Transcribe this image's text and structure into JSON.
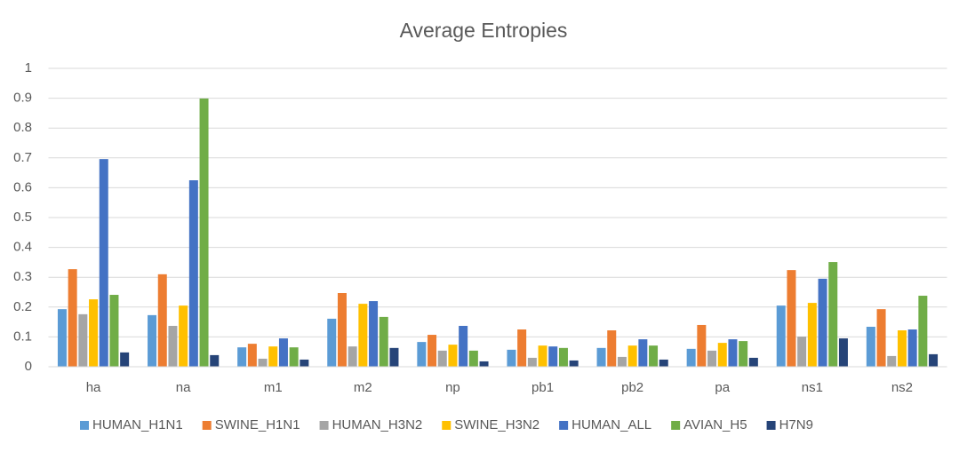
{
  "chart_data": {
    "type": "bar",
    "title": "Average Entropies",
    "categories": [
      "ha",
      "na",
      "m1",
      "m2",
      "np",
      "pb1",
      "pb2",
      "pa",
      "ns1",
      "ns2"
    ],
    "series": [
      {
        "name": "HUMAN_H1N1",
        "color": "#5b9bd5",
        "values": [
          0.193,
          0.173,
          0.065,
          0.161,
          0.083,
          0.057,
          0.063,
          0.06,
          0.205,
          0.134
        ]
      },
      {
        "name": "SWINE_H1N1",
        "color": "#ed7d31",
        "values": [
          0.327,
          0.31,
          0.077,
          0.247,
          0.107,
          0.125,
          0.122,
          0.14,
          0.324,
          0.193
        ]
      },
      {
        "name": "HUMAN_H3N2",
        "color": "#a5a5a5",
        "values": [
          0.176,
          0.137,
          0.027,
          0.068,
          0.054,
          0.03,
          0.033,
          0.054,
          0.101,
          0.036
        ]
      },
      {
        "name": "SWINE_H3N2",
        "color": "#ffc000",
        "values": [
          0.226,
          0.205,
          0.068,
          0.211,
          0.074,
          0.071,
          0.071,
          0.08,
          0.214,
          0.122
        ]
      },
      {
        "name": "HUMAN_ALL",
        "color": "#4472c4",
        "values": [
          0.696,
          0.625,
          0.095,
          0.22,
          0.137,
          0.068,
          0.092,
          0.092,
          0.295,
          0.125
        ]
      },
      {
        "name": "AVIAN_H5",
        "color": "#70ad47",
        "values": [
          0.241,
          0.899,
          0.065,
          0.167,
          0.054,
          0.063,
          0.071,
          0.086,
          0.351,
          0.238
        ]
      },
      {
        "name": "H7N9",
        "color": "#264478",
        "values": [
          0.048,
          0.039,
          0.024,
          0.063,
          0.018,
          0.021,
          0.024,
          0.03,
          0.095,
          0.042
        ]
      }
    ],
    "ylim": [
      0,
      1
    ],
    "yticks": [
      0,
      0.1,
      0.2,
      0.3,
      0.4,
      0.5,
      0.6,
      0.7,
      0.8,
      0.9,
      1
    ],
    "grid": true,
    "legend": "bottom"
  }
}
